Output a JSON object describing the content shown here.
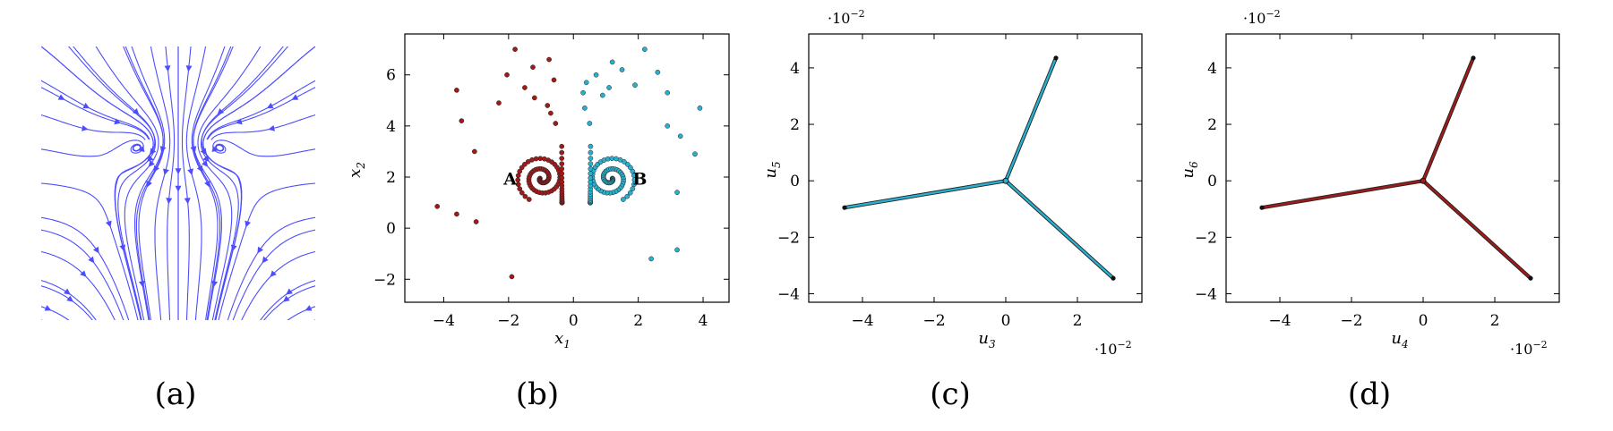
{
  "panels": [
    {
      "caption": "(a)"
    },
    {
      "caption": "(b)"
    },
    {
      "caption": "(c)"
    },
    {
      "caption": "(d)"
    }
  ],
  "colors": {
    "stream": "#4d4dff",
    "red": "#a11a1a",
    "cyan": "#2ab0cf",
    "edge": "#222222"
  },
  "chart_data": [
    {
      "panel": "a",
      "type": "streamplot",
      "description_source": "vector field with two spiral foci (heart-shaped streamlines)",
      "xlim": [
        -1,
        1
      ],
      "ylim": [
        -1,
        1
      ],
      "foci": [
        [
          -0.22,
          0.3
        ],
        [
          0.22,
          0.3
        ]
      ]
    },
    {
      "panel": "b",
      "type": "scatter",
      "xlabel": "x",
      "xlabel_sub": "1",
      "ylabel": "x",
      "ylabel_sub": "2",
      "xlim": [
        -5.2,
        4.8
      ],
      "ylim": [
        -2.9,
        7.6
      ],
      "xticks": [
        -4,
        -2,
        0,
        2,
        4
      ],
      "yticks": [
        -2,
        0,
        2,
        4,
        6
      ],
      "annotations": [
        {
          "text": "A",
          "x": -1.95,
          "y": 1.95
        },
        {
          "text": "B",
          "x": 2.05,
          "y": 1.95
        }
      ],
      "series": [
        {
          "color_key": "red",
          "spiral": {
            "cx": -0.98,
            "cy": 1.95,
            "loops": 2.2
          },
          "scattered": [
            [
              -1.8,
              7.0
            ],
            [
              -0.75,
              6.6
            ],
            [
              -1.25,
              6.3
            ],
            [
              -2.05,
              6.0
            ],
            [
              -0.6,
              5.8
            ],
            [
              -3.6,
              5.4
            ],
            [
              -1.5,
              5.5
            ],
            [
              -1.2,
              5.1
            ],
            [
              -2.3,
              4.9
            ],
            [
              -0.8,
              4.8
            ],
            [
              -0.7,
              4.5
            ],
            [
              -3.45,
              4.2
            ],
            [
              -0.55,
              4.1
            ],
            [
              -3.05,
              3.0
            ],
            [
              -4.2,
              0.85
            ],
            [
              -3.6,
              0.55
            ],
            [
              -3.0,
              0.25
            ],
            [
              -1.9,
              -1.9
            ]
          ]
        },
        {
          "color_key": "cyan",
          "spiral": {
            "cx": 1.15,
            "cy": 1.95,
            "loops": 2.2
          },
          "scattered": [
            [
              2.2,
              7.0
            ],
            [
              1.2,
              6.5
            ],
            [
              0.7,
              6.0
            ],
            [
              1.5,
              6.2
            ],
            [
              2.6,
              6.1
            ],
            [
              2.9,
              5.3
            ],
            [
              0.4,
              5.7
            ],
            [
              1.1,
              5.5
            ],
            [
              1.9,
              5.6
            ],
            [
              0.3,
              5.3
            ],
            [
              0.9,
              5.2
            ],
            [
              0.35,
              4.7
            ],
            [
              3.9,
              4.7
            ],
            [
              0.5,
              4.1
            ],
            [
              2.9,
              4.0
            ],
            [
              3.3,
              3.6
            ],
            [
              3.75,
              2.9
            ],
            [
              3.2,
              1.4
            ],
            [
              3.2,
              -0.85
            ],
            [
              2.4,
              -1.2
            ]
          ]
        }
      ]
    },
    {
      "panel": "c",
      "type": "line",
      "xlabel": "u",
      "xlabel_sub": "3",
      "ylabel": "u",
      "ylabel_sub": "5",
      "xlim": [
        -5.5,
        3.8
      ],
      "ylim": [
        -4.3,
        5.2
      ],
      "xticks": [
        -4,
        -2,
        0,
        2
      ],
      "yticks": [
        -4,
        -2,
        0,
        2,
        4
      ],
      "x_scale_label": "·10",
      "x_scale_exp": "−2",
      "y_scale_label": "·10",
      "y_scale_exp": "−2",
      "color_key": "cyan",
      "series": [
        {
          "name": "",
          "x": [
            0,
            1.4
          ],
          "y": [
            0,
            4.35
          ]
        },
        {
          "name": "",
          "x": [
            0,
            -4.5
          ],
          "y": [
            0,
            -0.95
          ]
        },
        {
          "name": "",
          "x": [
            0,
            3.0
          ],
          "y": [
            0,
            -3.45
          ]
        }
      ]
    },
    {
      "panel": "d",
      "type": "line",
      "xlabel": "u",
      "xlabel_sub": "4",
      "ylabel": "u",
      "ylabel_sub": "6",
      "xlim": [
        -5.5,
        3.8
      ],
      "ylim": [
        -4.3,
        5.2
      ],
      "xticks": [
        -4,
        -2,
        0,
        2
      ],
      "yticks": [
        -4,
        -2,
        0,
        2,
        4
      ],
      "x_scale_label": "·10",
      "x_scale_exp": "−2",
      "y_scale_label": "·10",
      "y_scale_exp": "−2",
      "color_key": "red",
      "series": [
        {
          "name": "",
          "x": [
            0,
            1.4
          ],
          "y": [
            0,
            4.35
          ]
        },
        {
          "name": "",
          "x": [
            0,
            -4.5
          ],
          "y": [
            0,
            -0.95
          ]
        },
        {
          "name": "",
          "x": [
            0,
            3.0
          ],
          "y": [
            0,
            -3.45
          ]
        }
      ]
    }
  ]
}
